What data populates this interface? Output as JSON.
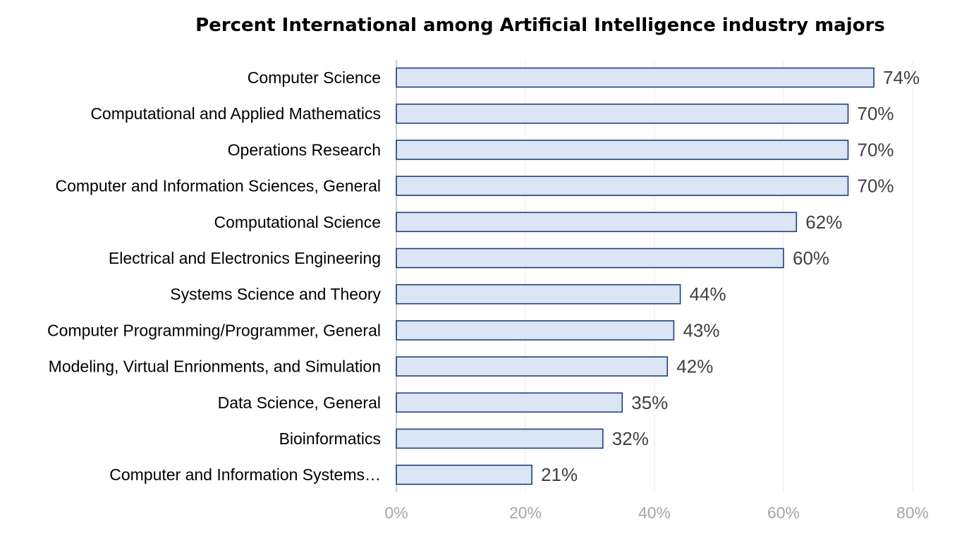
{
  "chart_data": {
    "type": "bar",
    "orientation": "horizontal",
    "title": "Percent International among Artificial Intelligence industry majors",
    "categories": [
      "Computer Science",
      "Computational and Applied Mathematics",
      "Operations Research",
      "Computer and Information Sciences, General",
      "Computational Science",
      "Electrical and Electronics Engineering",
      "Systems Science and Theory",
      "Computer Programming/Programmer, General",
      "Modeling, Virtual Enrionments, and Simulation",
      "Data Science, General",
      "Bioinformatics",
      "Computer and Information Systems…"
    ],
    "values": [
      74,
      70,
      70,
      70,
      62,
      60,
      44,
      43,
      42,
      35,
      32,
      21
    ],
    "value_labels": [
      "74%",
      "70%",
      "70%",
      "70%",
      "62%",
      "60%",
      "44%",
      "43%",
      "42%",
      "35%",
      "32%",
      "21%"
    ],
    "xlim": [
      0,
      80
    ],
    "xticks": [
      0,
      20,
      40,
      60,
      80
    ],
    "xtick_labels": [
      "0%",
      "20%",
      "40%",
      "60%",
      "80%"
    ],
    "xlabel": "",
    "ylabel": "",
    "grid": true,
    "legend": "none",
    "colors": {
      "bar_fill": "#dbe5f4",
      "bar_stroke": "#1f3f7a",
      "grid": "#ebebeb",
      "axis": "#bfbfbf",
      "value_label": "#404040",
      "tick_label": "#a6a6a6",
      "category_label": "#000000",
      "title": "#000000"
    }
  }
}
